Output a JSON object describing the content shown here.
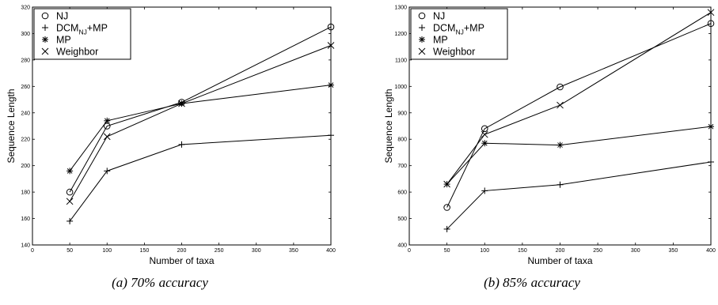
{
  "chart_data": [
    {
      "type": "line",
      "caption": "(a) 70% accuracy",
      "xlabel": "Number of taxa",
      "ylabel": "Sequence Length",
      "xlim": [
        0,
        400
      ],
      "ylim": [
        140,
        320
      ],
      "xticks": [
        0,
        50,
        100,
        150,
        200,
        250,
        300,
        350,
        400
      ],
      "yticks": [
        140,
        160,
        180,
        200,
        220,
        240,
        260,
        280,
        300,
        320
      ],
      "legend_position": "top-left",
      "x": [
        50,
        100,
        200,
        400
      ],
      "series": [
        {
          "name": "NJ",
          "marker": "circle",
          "values": [
            180,
            230,
            248,
            305
          ]
        },
        {
          "name": "DCM_NJ+MP",
          "marker": "plus",
          "values": [
            158,
            196,
            216,
            223
          ]
        },
        {
          "name": "MP",
          "marker": "star",
          "values": [
            196,
            234,
            247,
            261
          ]
        },
        {
          "name": "Weighbor",
          "marker": "x",
          "values": [
            173,
            222,
            247,
            291
          ]
        }
      ]
    },
    {
      "type": "line",
      "caption": "(b) 85% accuracy",
      "xlabel": "Number of taxa",
      "ylabel": "Sequence Length",
      "xlim": [
        0,
        400
      ],
      "ylim": [
        400,
        1300
      ],
      "xticks": [
        0,
        50,
        100,
        150,
        200,
        250,
        300,
        350,
        400
      ],
      "yticks": [
        400,
        500,
        600,
        700,
        800,
        900,
        1000,
        1100,
        1200,
        1300
      ],
      "legend_position": "top-left",
      "x": [
        50,
        100,
        200,
        400
      ],
      "series": [
        {
          "name": "NJ",
          "marker": "circle",
          "values": [
            542,
            840,
            998,
            1238
          ]
        },
        {
          "name": "DCM_NJ+MP",
          "marker": "plus",
          "values": [
            460,
            605,
            628,
            714
          ]
        },
        {
          "name": "MP",
          "marker": "star",
          "values": [
            630,
            785,
            778,
            848
          ]
        },
        {
          "name": "Weighbor",
          "marker": "x",
          "values": [
            630,
            818,
            929,
            1280
          ]
        }
      ]
    }
  ]
}
